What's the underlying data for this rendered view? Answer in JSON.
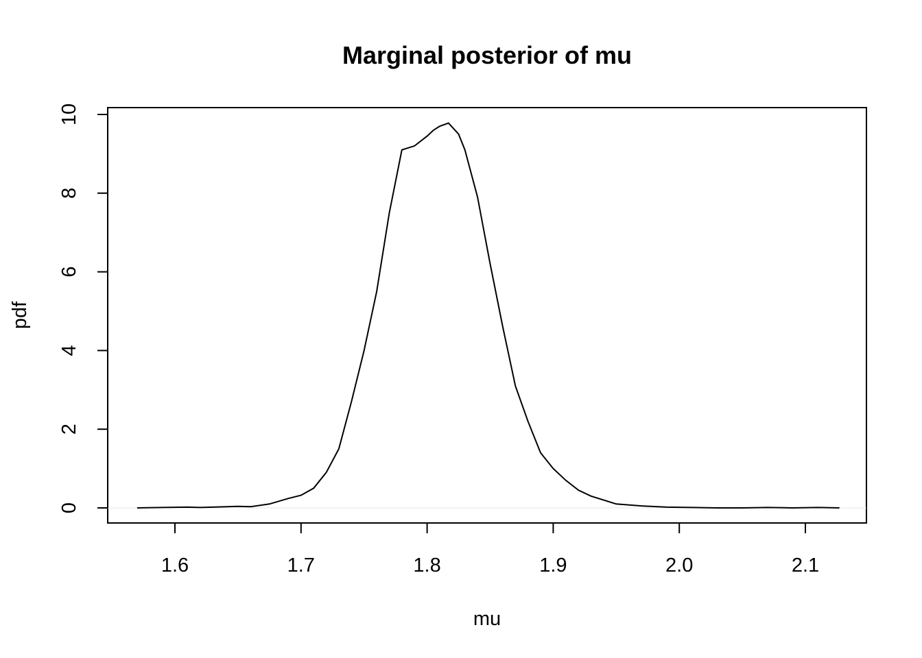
{
  "chart_data": {
    "type": "line",
    "title": "Marginal posterior of mu",
    "xlabel": "mu",
    "ylabel": "pdf",
    "xlim": [
      1.57,
      2.127
    ],
    "ylim": [
      0,
      10
    ],
    "x_ticks": [
      "1.6",
      "1.7",
      "1.8",
      "1.9",
      "2.0",
      "2.1"
    ],
    "y_ticks": [
      "0",
      "2",
      "4",
      "6",
      "8",
      "10"
    ],
    "grid": false,
    "series": [
      {
        "x": [
          1.57,
          1.59,
          1.61,
          1.62,
          1.63,
          1.65,
          1.66,
          1.675,
          1.69,
          1.7,
          1.71,
          1.72,
          1.73,
          1.74,
          1.75,
          1.76,
          1.77,
          1.78,
          1.79,
          1.8,
          1.805,
          1.81,
          1.817,
          1.825,
          1.83,
          1.84,
          1.85,
          1.86,
          1.87,
          1.88,
          1.89,
          1.9,
          1.91,
          1.92,
          1.93,
          1.95,
          1.97,
          1.99,
          2.01,
          2.03,
          2.05,
          2.07,
          2.09,
          2.11,
          2.127
        ],
        "y": [
          0.0,
          0.01,
          0.02,
          0.01,
          0.02,
          0.04,
          0.03,
          0.1,
          0.24,
          0.32,
          0.5,
          0.9,
          1.5,
          2.7,
          4.0,
          5.5,
          7.5,
          9.1,
          9.2,
          9.45,
          9.6,
          9.7,
          9.78,
          9.5,
          9.1,
          7.9,
          6.2,
          4.6,
          3.1,
          2.2,
          1.4,
          1.0,
          0.7,
          0.45,
          0.3,
          0.1,
          0.05,
          0.02,
          0.01,
          0.0,
          0.0,
          0.01,
          0.0,
          0.01,
          0.0
        ]
      }
    ]
  }
}
